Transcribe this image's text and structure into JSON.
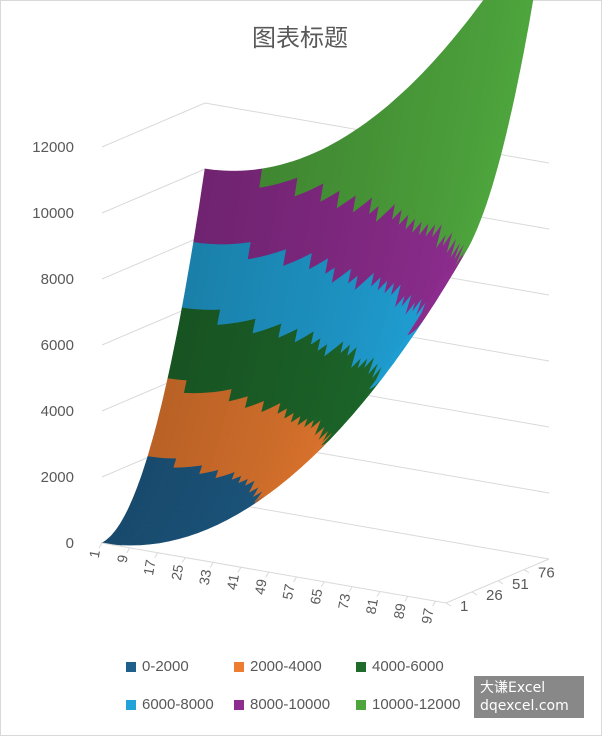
{
  "chart_data": {
    "type": "surface",
    "title": "图表标题",
    "ylim": [
      0,
      12000
    ],
    "z_ticks": [
      "0",
      "2000",
      "4000",
      "6000",
      "8000",
      "10000",
      "12000"
    ],
    "x_ticks": [
      "1",
      "9",
      "17",
      "25",
      "33",
      "41",
      "49",
      "57",
      "65",
      "73",
      "81",
      "89",
      "97"
    ],
    "depth_ticks": [
      "1",
      "26",
      "51",
      "76"
    ],
    "x_range": [
      1,
      100
    ],
    "depth_range": [
      1,
      100
    ],
    "formula": "x^2 + y^2",
    "grid": true,
    "legend_position": "bottom",
    "series": [
      {
        "name": "0-2000",
        "color": "#1f5f8b"
      },
      {
        "name": "2000-4000",
        "color": "#ed7d31"
      },
      {
        "name": "4000-6000",
        "color": "#1e6b2c"
      },
      {
        "name": "6000-8000",
        "color": "#21a3d9"
      },
      {
        "name": "8000-10000",
        "color": "#8e2d8f"
      },
      {
        "name": "10000-12000",
        "color": "#4ea53d"
      }
    ]
  },
  "watermark": {
    "line1": "大谦Excel",
    "line2": "dqexcel.com"
  }
}
